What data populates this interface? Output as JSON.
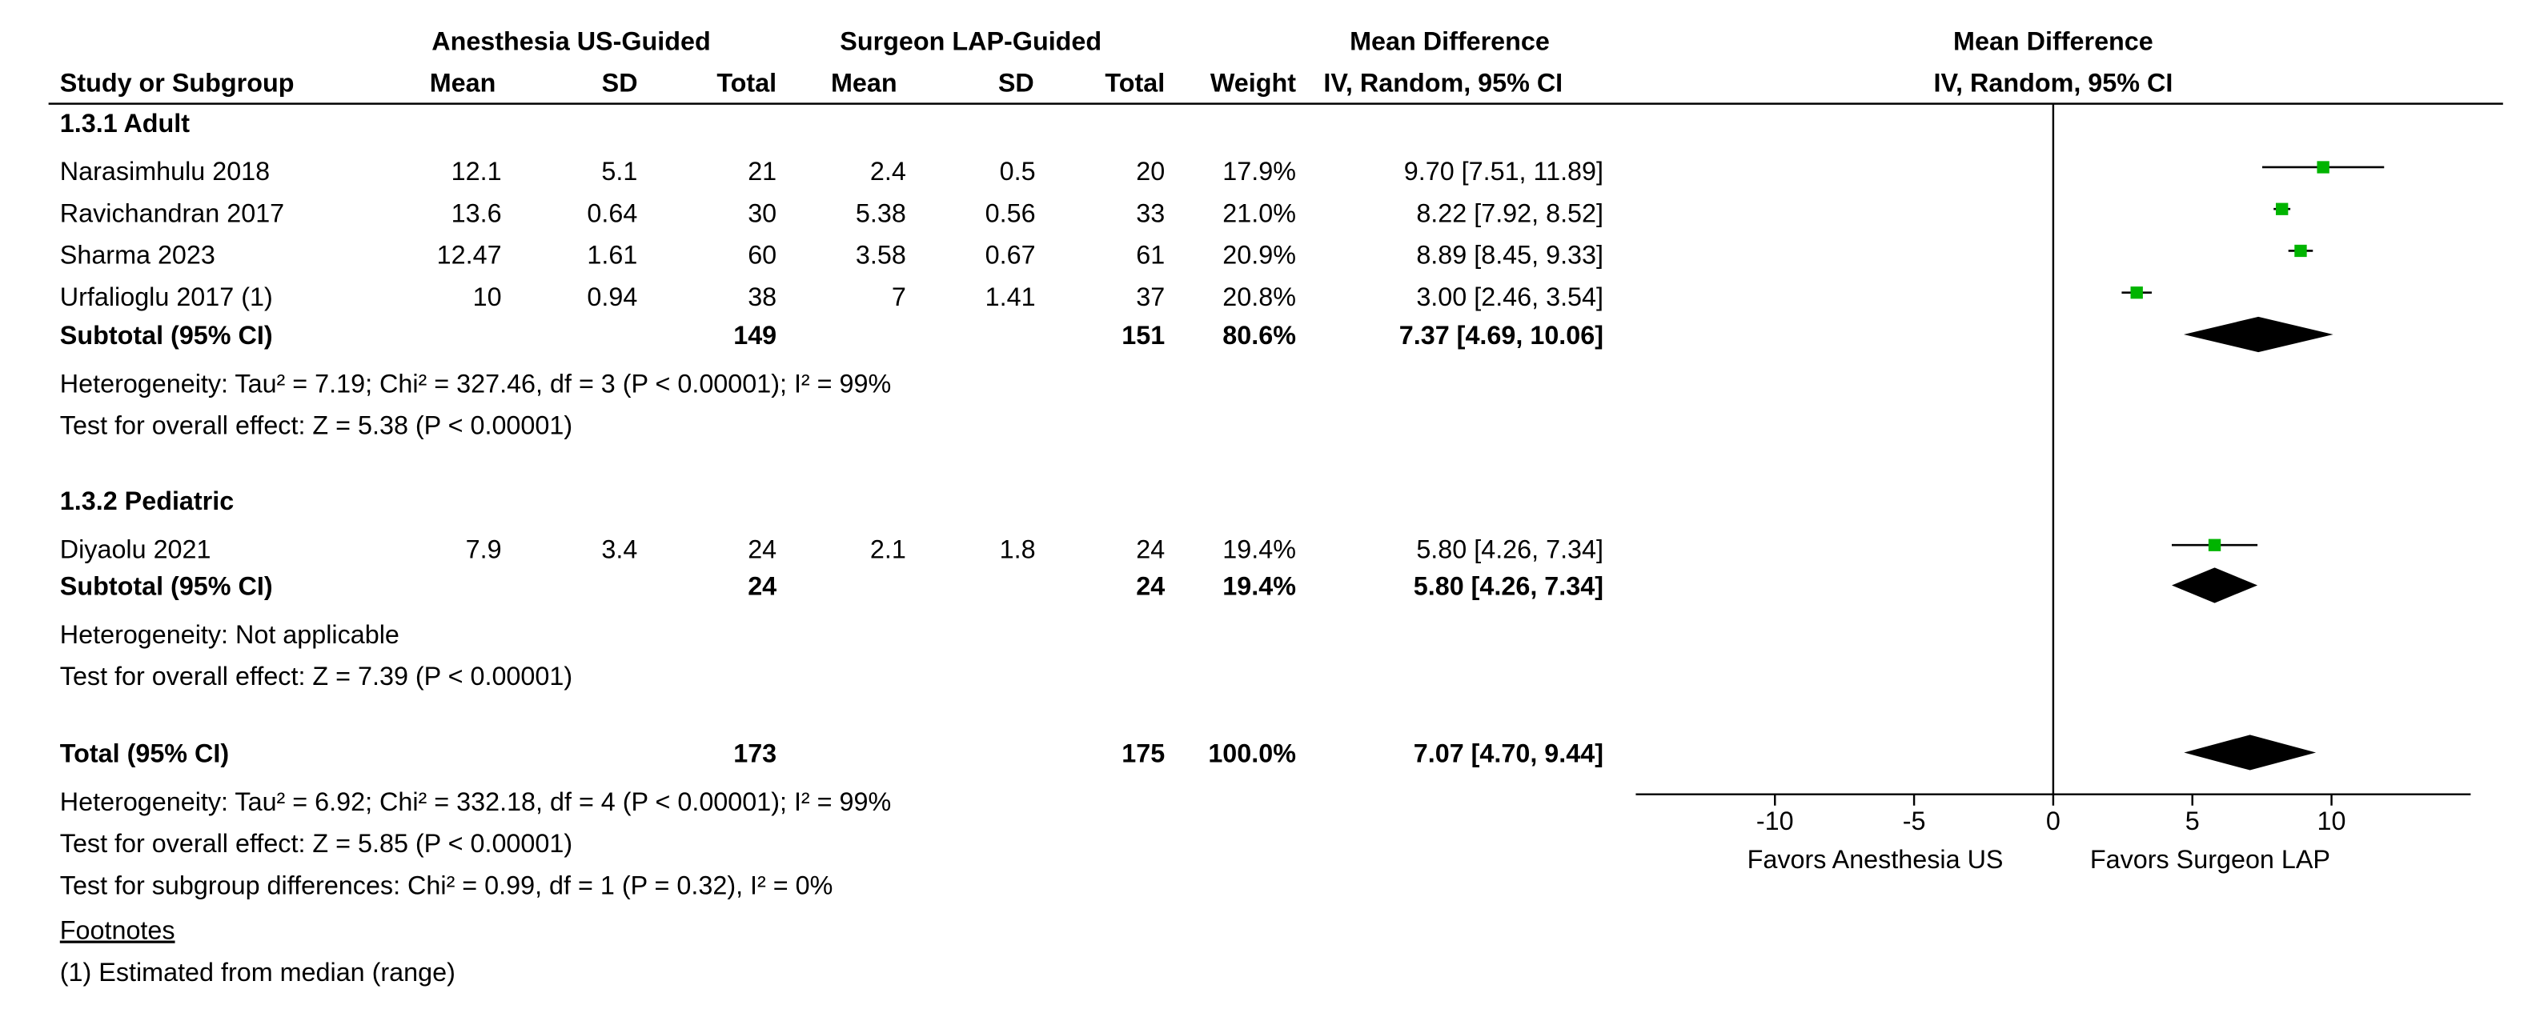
{
  "header": {
    "group1": "Anesthesia US-Guided",
    "group2": "Surgeon LAP-Guided",
    "md_title": "Mean Difference",
    "md_method": "IV, Random, 95% CI",
    "study_col": "Study or Subgroup",
    "mean": "Mean",
    "sd": "SD",
    "total": "Total",
    "weight": "Weight"
  },
  "subgroups": [
    {
      "title": "1.3.1 Adult",
      "studies": [
        {
          "name": "Narasimhulu 2018",
          "m1": "12.1",
          "sd1": "5.1",
          "n1": "21",
          "m2": "2.4",
          "sd2": "0.5",
          "n2": "20",
          "weight": "17.9%",
          "ci": "9.70 [7.51, 11.89]"
        },
        {
          "name": "Ravichandran 2017",
          "m1": "13.6",
          "sd1": "0.64",
          "n1": "30",
          "m2": "5.38",
          "sd2": "0.56",
          "n2": "33",
          "weight": "21.0%",
          "ci": "8.22 [7.92, 8.52]"
        },
        {
          "name": "Sharma 2023",
          "m1": "12.47",
          "sd1": "1.61",
          "n1": "60",
          "m2": "3.58",
          "sd2": "0.67",
          "n2": "61",
          "weight": "20.9%",
          "ci": "8.89 [8.45, 9.33]"
        },
        {
          "name": "Urfalioglu 2017 (1)",
          "m1": "10",
          "sd1": "0.94",
          "n1": "38",
          "m2": "7",
          "sd2": "1.41",
          "n2": "37",
          "weight": "20.8%",
          "ci": "3.00 [2.46, 3.54]"
        }
      ],
      "subtotal": {
        "label": "Subtotal (95% CI)",
        "n1": "149",
        "n2": "151",
        "weight": "80.6%",
        "ci": "7.37 [4.69, 10.06]"
      },
      "heterogeneity": "Heterogeneity: Tau² = 7.19; Chi² = 327.46, df = 3 (P < 0.00001); I² = 99%",
      "overall": "Test for overall effect: Z = 5.38 (P < 0.00001)"
    },
    {
      "title": "1.3.2 Pediatric",
      "studies": [
        {
          "name": "Diyaolu 2021",
          "m1": "7.9",
          "sd1": "3.4",
          "n1": "24",
          "m2": "2.1",
          "sd2": "1.8",
          "n2": "24",
          "weight": "19.4%",
          "ci": "5.80 [4.26, 7.34]"
        }
      ],
      "subtotal": {
        "label": "Subtotal (95% CI)",
        "n1": "24",
        "n2": "24",
        "weight": "19.4%",
        "ci": "5.80 [4.26, 7.34]"
      },
      "heterogeneity": "Heterogeneity: Not applicable",
      "overall": "Test for overall effect: Z = 7.39 (P < 0.00001)"
    }
  ],
  "total": {
    "label": "Total (95% CI)",
    "n1": "173",
    "n2": "175",
    "weight": "100.0%",
    "ci": "7.07 [4.70, 9.44]",
    "heterogeneity": "Heterogeneity: Tau² = 6.92; Chi² = 332.18, df = 4 (P < 0.00001); I² = 99%",
    "overall": "Test for overall effect: Z = 5.85 (P < 0.00001)",
    "subgroup_diff": "Test for subgroup differences: Chi² = 0.99, df = 1 (P = 0.32), I² = 0%"
  },
  "footnotes": {
    "title": "Footnotes",
    "items": [
      "(1) Estimated from median (range)"
    ]
  },
  "axis": {
    "favors_left": "Favors Anesthesia US",
    "favors_right": "Favors Surgeon LAP"
  },
  "colors": {
    "study_marker": "#00b400",
    "diamond": "#000000",
    "line": "#000000"
  },
  "chart_data": {
    "type": "forest",
    "title": "Mean Difference",
    "subtitle": "IV, Random, 95% CI",
    "xlabel": "",
    "ylabel": "",
    "xlim": [
      -15,
      15
    ],
    "xticks": [
      -10,
      -5,
      0,
      5,
      10
    ],
    "xtick_labels": [
      "-10",
      "-5",
      "0",
      "5",
      "10"
    ],
    "favors_left": "Favors Anesthesia US",
    "favors_right": "Favors Surgeon LAP",
    "studies": [
      {
        "name": "Narasimhulu 2018",
        "subgroup": "1.3.1 Adult",
        "md": 9.7,
        "lower": 7.51,
        "upper": 11.89,
        "weight": 17.9
      },
      {
        "name": "Ravichandran 2017",
        "subgroup": "1.3.1 Adult",
        "md": 8.22,
        "lower": 7.92,
        "upper": 8.52,
        "weight": 21.0
      },
      {
        "name": "Sharma 2023",
        "subgroup": "1.3.1 Adult",
        "md": 8.89,
        "lower": 8.45,
        "upper": 9.33,
        "weight": 20.9
      },
      {
        "name": "Urfalioglu 2017 (1)",
        "subgroup": "1.3.1 Adult",
        "md": 3.0,
        "lower": 2.46,
        "upper": 3.54,
        "weight": 20.8
      },
      {
        "name": "Diyaolu 2021",
        "subgroup": "1.3.2 Pediatric",
        "md": 5.8,
        "lower": 4.26,
        "upper": 7.34,
        "weight": 19.4
      }
    ],
    "pooled": [
      {
        "name": "Subtotal Adult",
        "md": 7.37,
        "lower": 4.69,
        "upper": 10.06
      },
      {
        "name": "Subtotal Pediatric",
        "md": 5.8,
        "lower": 4.26,
        "upper": 7.34
      },
      {
        "name": "Total",
        "md": 7.07,
        "lower": 4.7,
        "upper": 9.44
      }
    ]
  }
}
